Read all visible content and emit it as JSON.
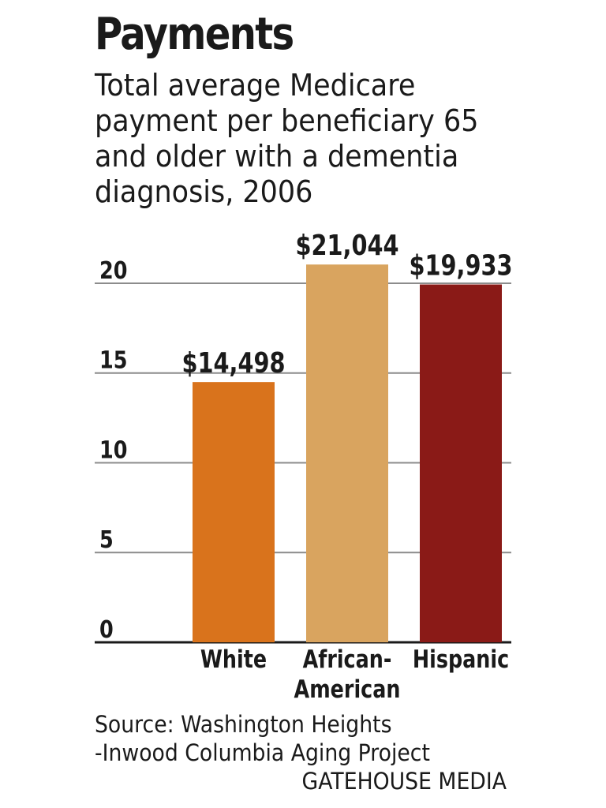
{
  "chart_data": {
    "type": "bar",
    "title": "Payments",
    "subtitle": "Total average Medicare payment per beneficiary 65 and older with a dementia diagnosis, 2006",
    "categories": [
      {
        "lines": [
          "White"
        ]
      },
      {
        "lines": [
          "African-",
          "American"
        ]
      },
      {
        "lines": [
          "Hispanic"
        ]
      }
    ],
    "values": [
      14498,
      21044,
      19933
    ],
    "value_labels": [
      "$14,498",
      "$21,044",
      "$19,933"
    ],
    "colors": [
      "#d9731c",
      "#d9a45f",
      "#8a1a17"
    ],
    "yticks": [
      0,
      5,
      10,
      15,
      20
    ],
    "ylim": [
      0,
      20
    ],
    "tick_unit": 1000,
    "grid": true
  },
  "source": {
    "line1": "Source: Washington Heights",
    "line2": "-Inwood Columbia Aging Project"
  },
  "credit": "GATEHOUSE MEDIA"
}
